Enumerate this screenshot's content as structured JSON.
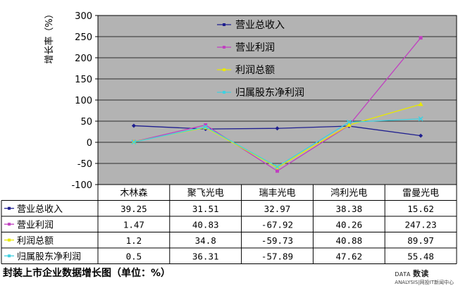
{
  "chart_data": {
    "type": "line",
    "ylabel": "增长率（%）",
    "ylim": [
      -100,
      300
    ],
    "yticks": [
      300,
      250,
      200,
      150,
      100,
      50,
      0,
      -50,
      -100
    ],
    "categories": [
      "木林森",
      "聚飞光电",
      "瑞丰光电",
      "鸿利光电",
      "雷曼光电"
    ],
    "series": [
      {
        "name": "营业总收入",
        "color": "#1f1f8f",
        "marker": "diamond",
        "values": [
          39.25,
          31.51,
          32.97,
          38.38,
          15.62
        ],
        "labels": [
          "39.25",
          "31.51",
          "32.97",
          "38.38",
          "15.62"
        ]
      },
      {
        "name": "营业利润",
        "color": "#c040c0",
        "marker": "square",
        "values": [
          1.47,
          40.83,
          -67.92,
          40.26,
          247.23
        ],
        "labels": [
          "1.47",
          "40.83",
          "-67.92",
          "40.26",
          "247.23"
        ]
      },
      {
        "name": "利润总额",
        "color": "#e8e800",
        "marker": "triangle",
        "values": [
          1.2,
          34.8,
          -59.73,
          40.88,
          89.97
        ],
        "labels": [
          "1.2",
          "34.8",
          "-59.73",
          "40.88",
          "89.97"
        ]
      },
      {
        "name": "归属股东净利润",
        "color": "#40d0e0",
        "marker": "x",
        "values": [
          0.5,
          36.31,
          -57.89,
          47.62,
          55.48
        ],
        "labels": [
          "0.5",
          "36.31",
          "-57.89",
          "47.62",
          "55.48"
        ]
      }
    ],
    "grid": true,
    "legend_position": "inside-top-center",
    "plot_background": "#b3b3b3"
  },
  "caption": "封装上市企业数据增长图（单位：%）",
  "logo": {
    "line1_prefix": "DATA",
    "line1_main": "数读",
    "line2": "ANALYSIS",
    "line2_suffix": "|网投IT新闻中心"
  }
}
